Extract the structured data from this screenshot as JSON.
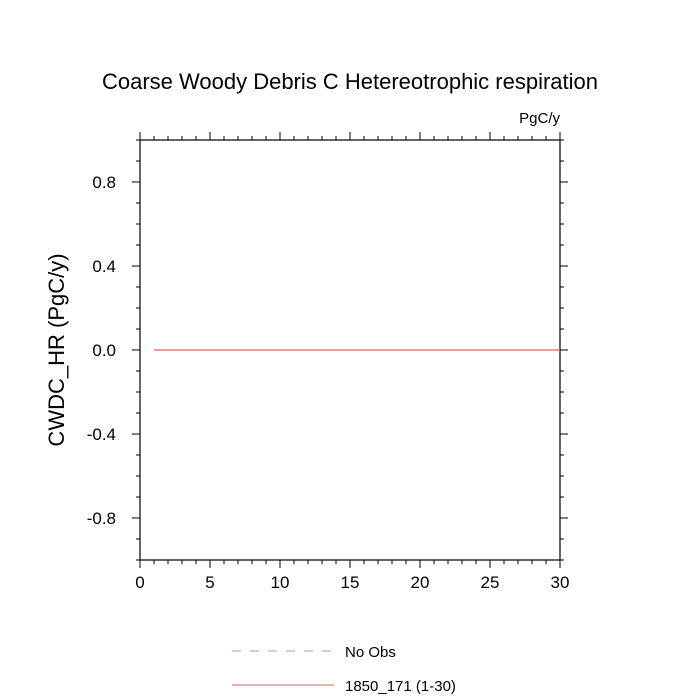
{
  "chart_data": {
    "type": "line",
    "title": "Coarse Woody Debris C Hetereotrophic respiration",
    "units": "PgC/y",
    "ylabel": "CWDC_HR  (PgC/y)",
    "xlabel": "",
    "xlim": [
      0,
      30
    ],
    "ylim": [
      -1,
      1
    ],
    "x_ticks": [
      0,
      5,
      10,
      15,
      20,
      25,
      30
    ],
    "x_tick_labels": [
      "0",
      "5",
      "10",
      "15",
      "20",
      "25",
      "30"
    ],
    "y_ticks": [
      -0.8,
      -0.4,
      0.0,
      0.4,
      0.8
    ],
    "y_tick_labels": [
      "-0.8",
      "-0.4",
      "0.0",
      "0.4",
      "0.8"
    ],
    "grid": false,
    "legend_position": "bottom-center",
    "series": [
      {
        "name": "No Obs",
        "color": "#9999ee",
        "style": "dashed",
        "x": [],
        "y": []
      },
      {
        "name": "1850_171 (1-30)",
        "color": "#e06060",
        "style": "solid",
        "x": [
          1,
          2,
          3,
          4,
          5,
          6,
          7,
          8,
          9,
          10,
          11,
          12,
          13,
          14,
          15,
          16,
          17,
          18,
          19,
          20,
          21,
          22,
          23,
          24,
          25,
          26,
          27,
          28,
          29,
          30
        ],
        "y": [
          0,
          0,
          0,
          0,
          0,
          0,
          0,
          0,
          0,
          0,
          0,
          0,
          0,
          0,
          0,
          0,
          0,
          0,
          0,
          0,
          0,
          0,
          0,
          0,
          0,
          0,
          0,
          0,
          0,
          0
        ]
      }
    ]
  }
}
